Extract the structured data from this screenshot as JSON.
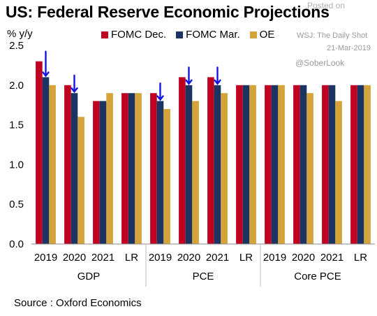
{
  "title": "US: Federal Reserve Economic Projections",
  "unit_label": "% y/y",
  "source": "Source : Oxford Economics",
  "watermark": {
    "posted_on": "Posted on",
    "publication": "WSJ: The Daily Shot",
    "date": "21-Mar-2019",
    "handle": "@SoberLook"
  },
  "colors": {
    "FOMC Dec.": "#c00020",
    "FOMC Mar.": "#1c3461",
    "OE": "#d4a43a",
    "arrow": "#1515e6"
  },
  "chart_data": {
    "type": "bar",
    "ylim": [
      0,
      2.5
    ],
    "yticks": [
      "0.0",
      "0.5",
      "1.0",
      "1.5",
      "2.0",
      "2.5"
    ],
    "groups": [
      {
        "name": "GDP",
        "categories": [
          "2019",
          "2020",
          "2021",
          "LR"
        ]
      },
      {
        "name": "PCE",
        "categories": [
          "2019",
          "2020",
          "2021",
          "LR"
        ]
      },
      {
        "name": "Core PCE",
        "categories": [
          "2019",
          "2020",
          "2021",
          "LR"
        ]
      }
    ],
    "series": [
      {
        "name": "FOMC Dec.",
        "values": [
          2.3,
          2.0,
          1.8,
          1.9,
          1.9,
          2.1,
          2.1,
          2.0,
          2.0,
          2.0,
          2.0,
          2.0
        ]
      },
      {
        "name": "FOMC Mar.",
        "values": [
          2.1,
          1.9,
          1.8,
          1.9,
          1.8,
          2.0,
          2.0,
          2.0,
          2.0,
          2.0,
          2.0,
          2.0
        ]
      },
      {
        "name": "OE",
        "values": [
          2.0,
          1.6,
          1.9,
          1.9,
          1.7,
          1.8,
          1.9,
          2.0,
          2.0,
          1.9,
          1.8,
          2.0
        ]
      }
    ],
    "down_arrows_on_series": "FOMC Mar.",
    "down_arrow_indices": [
      0,
      1,
      4,
      5,
      6
    ],
    "grid": false,
    "legend_position": "top"
  }
}
